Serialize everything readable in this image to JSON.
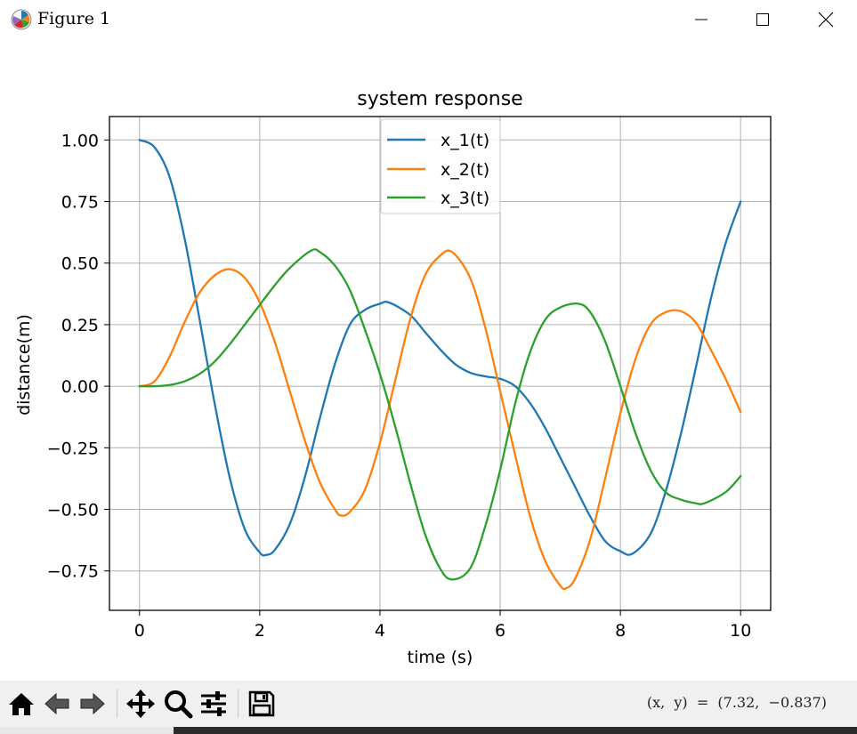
{
  "window": {
    "title": "Figure 1",
    "icons": {
      "app": "matplotlib-icon",
      "minimize": "minimize-icon",
      "maximize": "maximize-icon",
      "close": "close-icon"
    }
  },
  "toolbar": {
    "items": [
      {
        "name": "home-icon"
      },
      {
        "name": "back-arrow-icon"
      },
      {
        "name": "forward-arrow-icon"
      },
      {
        "name": "pan-icon"
      },
      {
        "name": "zoom-icon"
      },
      {
        "name": "configure-subplots-icon"
      },
      {
        "name": "save-icon"
      }
    ],
    "coordinates": "(x,  y)  =  (7.32,  −0.837)"
  },
  "chart_data": {
    "type": "line",
    "title": "system response",
    "xlabel": "time (s)",
    "ylabel": "distance(m)",
    "xlim": [
      -0.5,
      10.5
    ],
    "ylim": [
      -0.91,
      1.095
    ],
    "xticks": [
      0,
      2,
      4,
      6,
      8,
      10
    ],
    "xtick_labels": [
      "0",
      "2",
      "4",
      "6",
      "8",
      "10"
    ],
    "yticks": [
      1.0,
      0.75,
      0.5,
      0.25,
      0.0,
      -0.25,
      -0.5,
      -0.75
    ],
    "ytick_labels": [
      "1.00",
      "0.75",
      "0.50",
      "0.25",
      "0.00",
      "−0.25",
      "−0.50",
      "−0.75"
    ],
    "grid": true,
    "legend_position": "upper-center",
    "series": [
      {
        "name": "x_1(t)",
        "color": "#1f77b4",
        "x": [
          0,
          0.25,
          0.5,
          0.75,
          1.0,
          1.25,
          1.5,
          1.75,
          2.0,
          2.1,
          2.25,
          2.5,
          2.75,
          3.0,
          3.25,
          3.5,
          3.75,
          4.0,
          4.15,
          4.5,
          4.75,
          5.0,
          5.25,
          5.5,
          5.75,
          6.0,
          6.25,
          6.5,
          6.75,
          7.0,
          7.25,
          7.5,
          7.75,
          8.0,
          8.2,
          8.5,
          8.75,
          9.0,
          9.25,
          9.5,
          9.75,
          10.0
        ],
        "y": [
          1.0,
          0.97,
          0.85,
          0.6,
          0.27,
          -0.07,
          -0.37,
          -0.58,
          -0.675,
          -0.685,
          -0.665,
          -0.56,
          -0.37,
          -0.13,
          0.09,
          0.25,
          0.31,
          0.335,
          0.34,
          0.29,
          0.22,
          0.15,
          0.09,
          0.055,
          0.04,
          0.03,
          0.0,
          -0.07,
          -0.17,
          -0.29,
          -0.41,
          -0.53,
          -0.63,
          -0.67,
          -0.68,
          -0.6,
          -0.43,
          -0.2,
          0.07,
          0.35,
          0.58,
          0.75
        ]
      },
      {
        "name": "x_2(t)",
        "color": "#ff7f0e",
        "x": [
          0,
          0.25,
          0.5,
          0.75,
          1.0,
          1.25,
          1.5,
          1.75,
          2.0,
          2.25,
          2.5,
          2.75,
          3.0,
          3.25,
          3.35,
          3.5,
          3.75,
          4.0,
          4.25,
          4.5,
          4.75,
          5.0,
          5.2,
          5.5,
          5.75,
          6.0,
          6.25,
          6.5,
          6.75,
          7.0,
          7.1,
          7.25,
          7.5,
          7.75,
          8.0,
          8.25,
          8.5,
          8.75,
          9.0,
          9.25,
          9.5,
          9.75,
          10.0
        ],
        "y": [
          0.0,
          0.02,
          0.12,
          0.26,
          0.38,
          0.45,
          0.475,
          0.44,
          0.34,
          0.18,
          -0.02,
          -0.22,
          -0.39,
          -0.5,
          -0.525,
          -0.51,
          -0.42,
          -0.23,
          0.02,
          0.27,
          0.45,
          0.53,
          0.545,
          0.44,
          0.24,
          -0.02,
          -0.28,
          -0.53,
          -0.71,
          -0.81,
          -0.82,
          -0.78,
          -0.62,
          -0.37,
          -0.11,
          0.11,
          0.25,
          0.3,
          0.305,
          0.26,
          0.15,
          0.03,
          -0.105
        ]
      },
      {
        "name": "x_3(t)",
        "color": "#2ca02c",
        "x": [
          0,
          0.25,
          0.5,
          0.75,
          1.0,
          1.25,
          1.5,
          1.75,
          2.0,
          2.25,
          2.5,
          2.85,
          3.0,
          3.25,
          3.5,
          3.75,
          4.0,
          4.25,
          4.5,
          4.75,
          5.0,
          5.2,
          5.5,
          5.75,
          6.0,
          6.25,
          6.5,
          6.75,
          7.0,
          7.3,
          7.5,
          7.75,
          8.0,
          8.25,
          8.5,
          8.75,
          9.0,
          9.25,
          9.4,
          9.75,
          10.0
        ],
        "y": [
          0.0,
          0.0,
          0.005,
          0.02,
          0.05,
          0.1,
          0.17,
          0.25,
          0.33,
          0.41,
          0.48,
          0.55,
          0.545,
          0.49,
          0.39,
          0.23,
          0.05,
          -0.16,
          -0.39,
          -0.6,
          -0.74,
          -0.785,
          -0.74,
          -0.57,
          -0.34,
          -0.07,
          0.14,
          0.27,
          0.32,
          0.335,
          0.3,
          0.18,
          0.0,
          -0.19,
          -0.34,
          -0.43,
          -0.46,
          -0.475,
          -0.475,
          -0.43,
          -0.365
        ]
      }
    ]
  }
}
